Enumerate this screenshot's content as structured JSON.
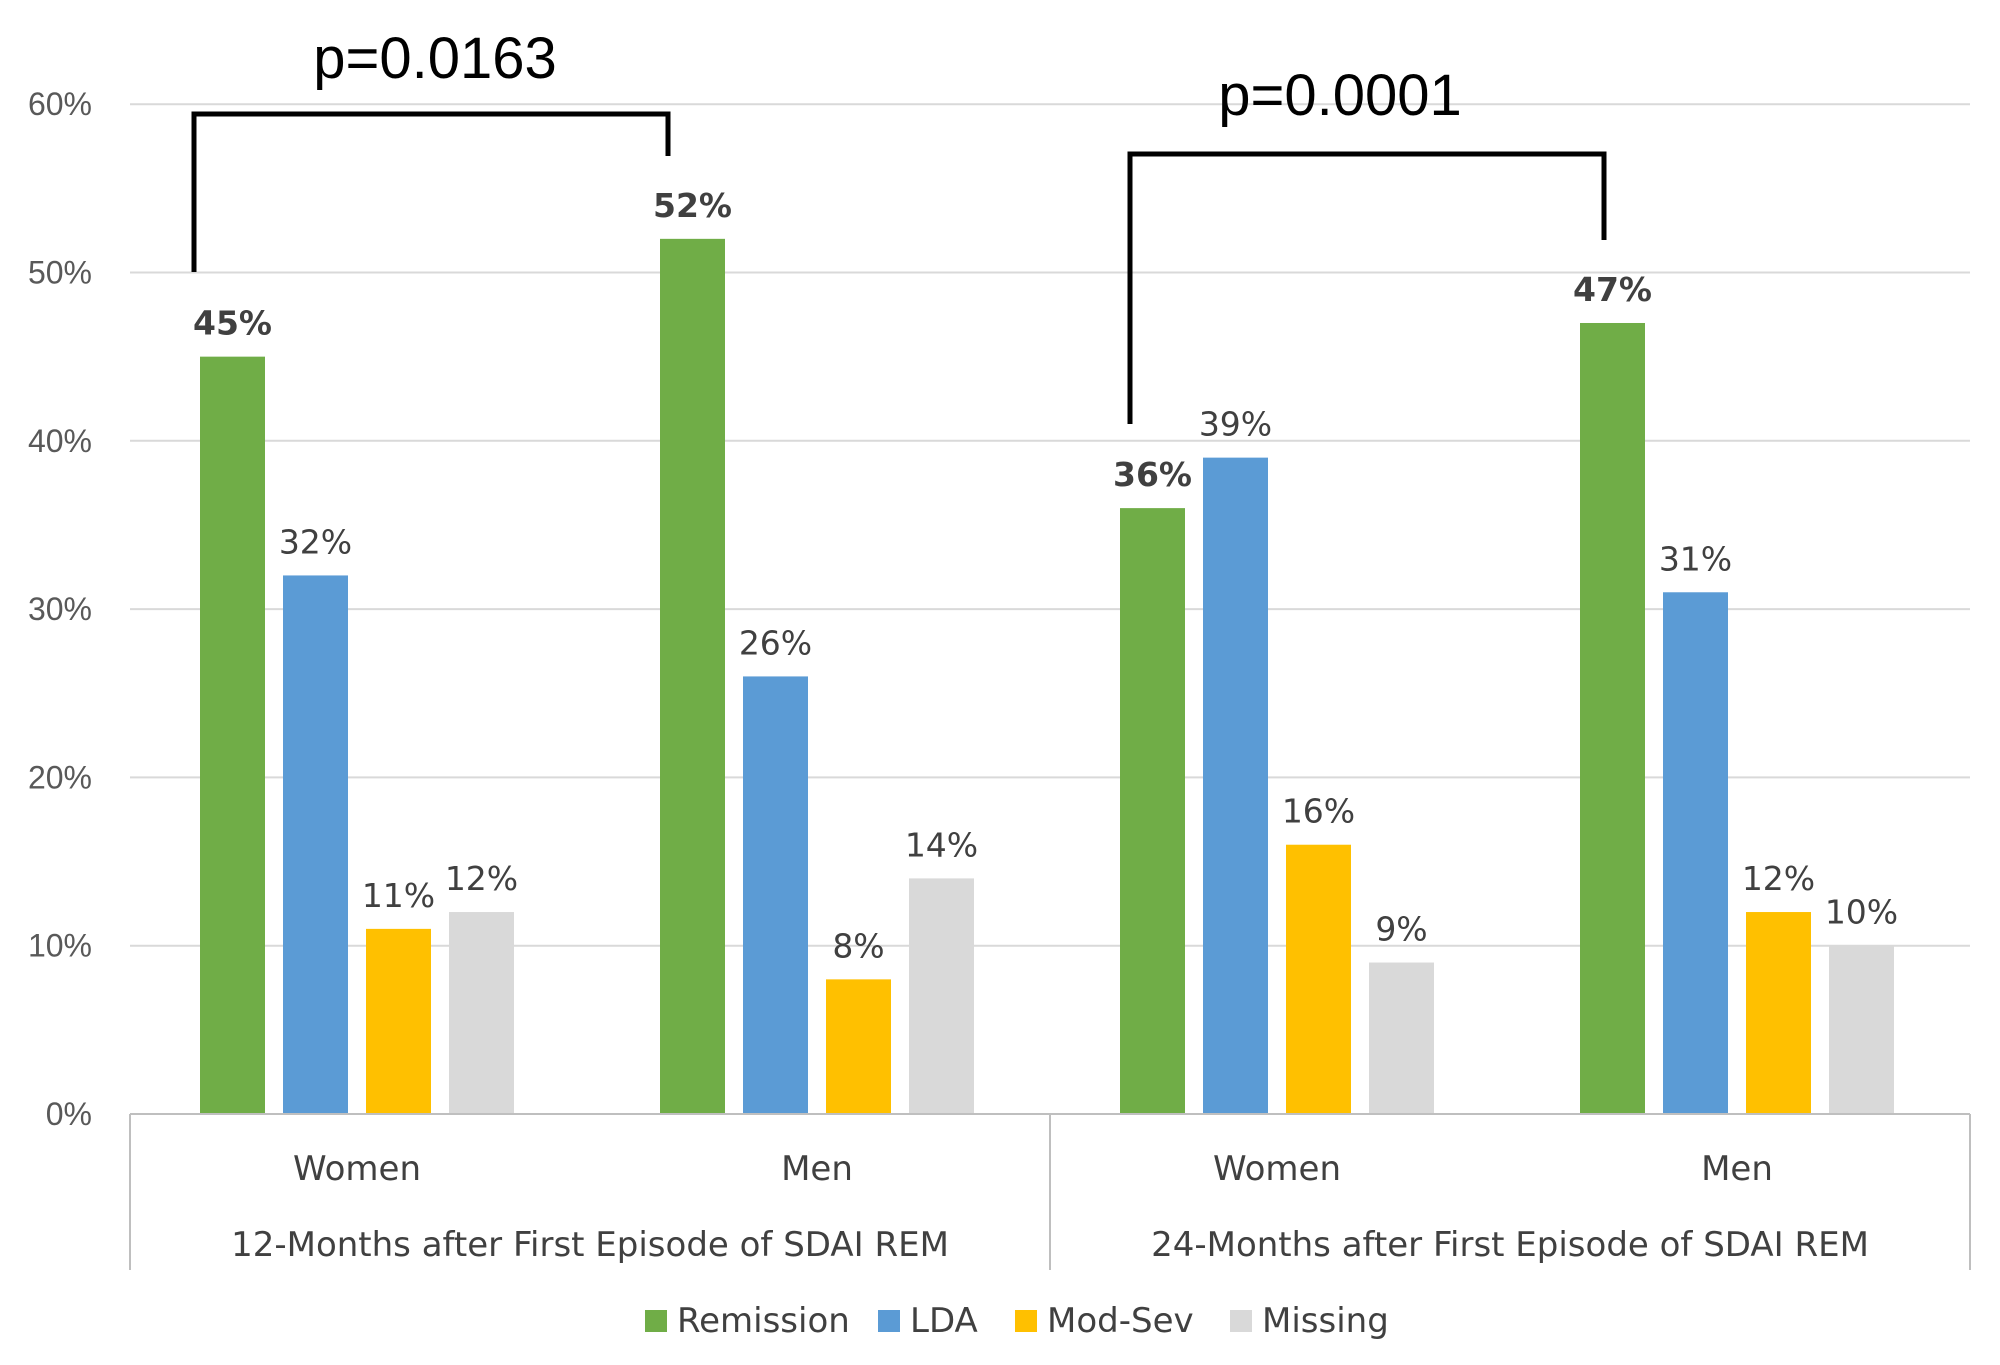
{
  "chart_data": {
    "type": "bar",
    "groups": [
      {
        "label": "12-Months after First Episode of SDAI REM",
        "categories": [
          "Women",
          "Men"
        ]
      },
      {
        "label": "24-Months after First Episode of SDAI REM",
        "categories": [
          "Women",
          "Men"
        ]
      }
    ],
    "categories": [
      "Women",
      "Men",
      "Women",
      "Men"
    ],
    "series": [
      {
        "name": "Remission",
        "color": "#70AD47",
        "values": [
          45,
          52,
          36,
          47
        ],
        "labels": [
          "45%",
          "52%",
          "36%",
          "47%"
        ],
        "bold_labels": true
      },
      {
        "name": "LDA",
        "color": "#5B9BD5",
        "values": [
          32,
          26,
          39,
          31
        ],
        "labels": [
          "32%",
          "26%",
          "39%",
          "31%"
        ],
        "bold_labels": false
      },
      {
        "name": "Mod-Sev",
        "color": "#FFC000",
        "values": [
          11,
          8,
          16,
          12
        ],
        "labels": [
          "11%",
          "8%",
          "16%",
          "12%"
        ],
        "bold_labels": false
      },
      {
        "name": "Missing",
        "color": "#D9D9D9",
        "values": [
          12,
          14,
          9,
          10
        ],
        "labels": [
          "12%",
          "14%",
          "9%",
          "10%"
        ],
        "bold_labels": false
      }
    ],
    "y_ticks": [
      0,
      10,
      20,
      30,
      40,
      50,
      60
    ],
    "y_tick_labels": [
      "0%",
      "10%",
      "20%",
      "30%",
      "40%",
      "50%",
      "60%"
    ],
    "ylim": [
      0,
      60
    ],
    "grid": true,
    "legend_position": "bottom",
    "annotations": [
      {
        "text": "p=0.0163",
        "from_category": 0,
        "to_category": 1,
        "series": "Remission"
      },
      {
        "text": "p=0.0001",
        "from_category": 2,
        "to_category": 3,
        "series": "Remission"
      }
    ],
    "title": "",
    "xlabel": "",
    "ylabel": ""
  }
}
